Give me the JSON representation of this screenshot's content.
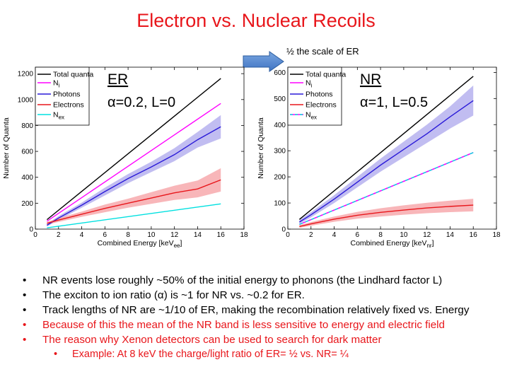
{
  "title": "Electron vs. Nuclear Recoils",
  "scale_note": "½ the scale of ER",
  "bullets": [
    {
      "text": "NR events lose roughly ~50% of the initial energy to phonons (the Lindhard factor L)",
      "color": "#000000"
    },
    {
      "text": "The exciton to ion ratio (α) is ~1 for NR vs. ~0.2 for ER.",
      "color": "#000000"
    },
    {
      "text": "Track lengths of NR are ~1/10 of ER, making the recombination relatively fixed vs. Energy",
      "color": "#000000"
    },
    {
      "text": "Because of this the mean of the NR band is less sensitive to energy and electric field",
      "color": "#e8161b"
    },
    {
      "text": "The reason why Xenon detectors can be used to search for dark matter",
      "color": "#e8161b"
    },
    {
      "text": "Example: At 8 keV the charge/light ratio of ER= ½ vs. NR= ¼",
      "color": "#e8161b",
      "sub": true
    }
  ],
  "chart_data": [
    {
      "type": "line",
      "label": "ER",
      "params": "α=0.2, L=0",
      "xlabel": "Combined Energy [keV",
      "xlabel_sub": "ee",
      "xlabel_close": "]",
      "ylabel": "Number of Quanta",
      "xlim": [
        0,
        18
      ],
      "ylim": [
        0,
        1250
      ],
      "xticks": [
        "0",
        "2",
        "4",
        "6",
        "8",
        "10",
        "12",
        "14",
        "16",
        "18"
      ],
      "yticks": [
        "0",
        "200",
        "400",
        "600",
        "800",
        "1000",
        "1200"
      ],
      "legend": [
        "Total quanta",
        "N",
        "Photons",
        "Electrons",
        "N"
      ],
      "legend_subs": [
        "",
        "i",
        "",
        "",
        "ex"
      ],
      "series": [
        {
          "name": "Total quanta",
          "color": "#000000",
          "x": [
            1,
            16
          ],
          "y": [
            73,
            1163
          ]
        },
        {
          "name": "Ni",
          "color": "#ff00ff",
          "x": [
            1,
            16
          ],
          "y": [
            61,
            970
          ]
        },
        {
          "name": "Photons",
          "color": "#2a1ad8",
          "x": [
            1,
            2,
            4,
            6,
            8,
            10,
            12,
            14,
            16
          ],
          "y": [
            30,
            85,
            185,
            290,
            390,
            480,
            575,
            690,
            790
          ],
          "band": [
            [
              20,
              40
            ],
            [
              70,
              100
            ],
            [
              165,
              205
            ],
            [
              260,
              320
            ],
            [
              355,
              425
            ],
            [
              440,
              520
            ],
            [
              525,
              625
            ],
            [
              630,
              750
            ],
            [
              700,
              880
            ]
          ]
        },
        {
          "name": "Electrons",
          "color": "#e8161b",
          "x": [
            1,
            2,
            4,
            6,
            8,
            10,
            12,
            14,
            16
          ],
          "y": [
            45,
            70,
            115,
            160,
            200,
            240,
            280,
            310,
            380
          ],
          "band": [
            [
              35,
              55
            ],
            [
              55,
              85
            ],
            [
              95,
              135
            ],
            [
              130,
              190
            ],
            [
              165,
              235
            ],
            [
              195,
              285
            ],
            [
              225,
              335
            ],
            [
              245,
              375
            ],
            [
              290,
              470
            ]
          ]
        },
        {
          "name": "Nex",
          "color": "#00e0e0",
          "x": [
            1,
            16
          ],
          "y": [
            10,
            195
          ]
        }
      ]
    },
    {
      "type": "line",
      "label": "NR",
      "params": "α=1, L=0.5",
      "xlabel": "Combined Energy [keV",
      "xlabel_sub": "nr",
      "xlabel_close": "]",
      "ylabel": "Number of Quanta",
      "xlim": [
        0,
        18
      ],
      "ylim": [
        0,
        620
      ],
      "xticks": [
        "0",
        "2",
        "4",
        "6",
        "8",
        "10",
        "12",
        "14",
        "16",
        "18"
      ],
      "yticks": [
        "0",
        "100",
        "200",
        "300",
        "400",
        "500",
        "600"
      ],
      "legend": [
        "Total quanta",
        "N",
        "Photons",
        "Electrons",
        "N"
      ],
      "legend_subs": [
        "",
        "i",
        "",
        "",
        "ex"
      ],
      "series": [
        {
          "name": "Total quanta",
          "color": "#000000",
          "x": [
            1,
            16
          ],
          "y": [
            37,
            585
          ]
        },
        {
          "name": "Ni",
          "color": "#ff00ff",
          "x": [
            1,
            16
          ],
          "y": [
            18,
            293
          ]
        },
        {
          "name": "Photons",
          "color": "#2a1ad8",
          "x": [
            1,
            2,
            4,
            6,
            8,
            10,
            12,
            14,
            16
          ],
          "y": [
            27,
            55,
            115,
            180,
            245,
            305,
            365,
            430,
            492
          ],
          "band": [
            [
              20,
              35
            ],
            [
              45,
              65
            ],
            [
              100,
              130
            ],
            [
              160,
              200
            ],
            [
              220,
              270
            ],
            [
              275,
              335
            ],
            [
              330,
              400
            ],
            [
              385,
              470
            ],
            [
              435,
              550
            ]
          ]
        },
        {
          "name": "Electrons",
          "color": "#e8161b",
          "x": [
            1,
            2,
            4,
            6,
            8,
            10,
            12,
            14,
            16
          ],
          "y": [
            10,
            20,
            38,
            53,
            64,
            73,
            81,
            87,
            92
          ],
          "band": [
            [
              5,
              15
            ],
            [
              13,
              27
            ],
            [
              28,
              48
            ],
            [
              40,
              66
            ],
            [
              48,
              80
            ],
            [
              55,
              91
            ],
            [
              61,
              101
            ],
            [
              65,
              109
            ],
            [
              68,
              116
            ]
          ]
        },
        {
          "name": "Nex",
          "color": "#00e0e0",
          "dashed": true,
          "x": [
            1,
            16
          ],
          "y": [
            18,
            293
          ]
        }
      ]
    }
  ]
}
